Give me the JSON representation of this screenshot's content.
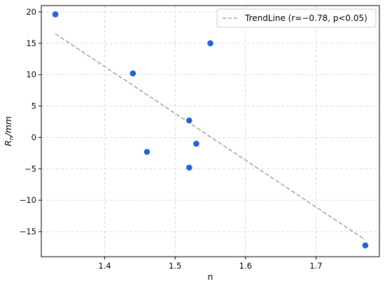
{
  "chart_data": {
    "type": "scatter",
    "title": "",
    "xlabel": "n",
    "ylabel": "R_n/mm",
    "xlim": [
      1.31,
      1.79
    ],
    "ylim": [
      -19,
      21
    ],
    "x_ticks": [
      1.4,
      1.5,
      1.6,
      1.7
    ],
    "x_tick_labels": [
      "1.4",
      "1.5",
      "1.6",
      "1.7"
    ],
    "y_ticks": [
      -15,
      -10,
      -5,
      0,
      5,
      10,
      15,
      20
    ],
    "y_tick_labels": [
      "−15",
      "−10",
      "−5",
      "0",
      "5",
      "10",
      "15",
      "20"
    ],
    "grid": true,
    "legend_position": "top-right",
    "series": [
      {
        "kind": "scatter",
        "color": "#1f63d6",
        "points": [
          {
            "x": 1.33,
            "y": 19.6
          },
          {
            "x": 1.44,
            "y": 10.2
          },
          {
            "x": 1.55,
            "y": 15.0
          },
          {
            "x": 1.52,
            "y": 2.7
          },
          {
            "x": 1.46,
            "y": -2.3
          },
          {
            "x": 1.53,
            "y": -1.0
          },
          {
            "x": 1.52,
            "y": -4.8
          },
          {
            "x": 1.77,
            "y": -17.2
          }
        ]
      },
      {
        "kind": "line",
        "name": "TrendLine (r=−0.78, p<0.05)",
        "color": "#a0a0a0",
        "dash": "dashed",
        "points": [
          {
            "x": 1.33,
            "y": 16.5
          },
          {
            "x": 1.77,
            "y": -16.3
          }
        ]
      }
    ]
  }
}
